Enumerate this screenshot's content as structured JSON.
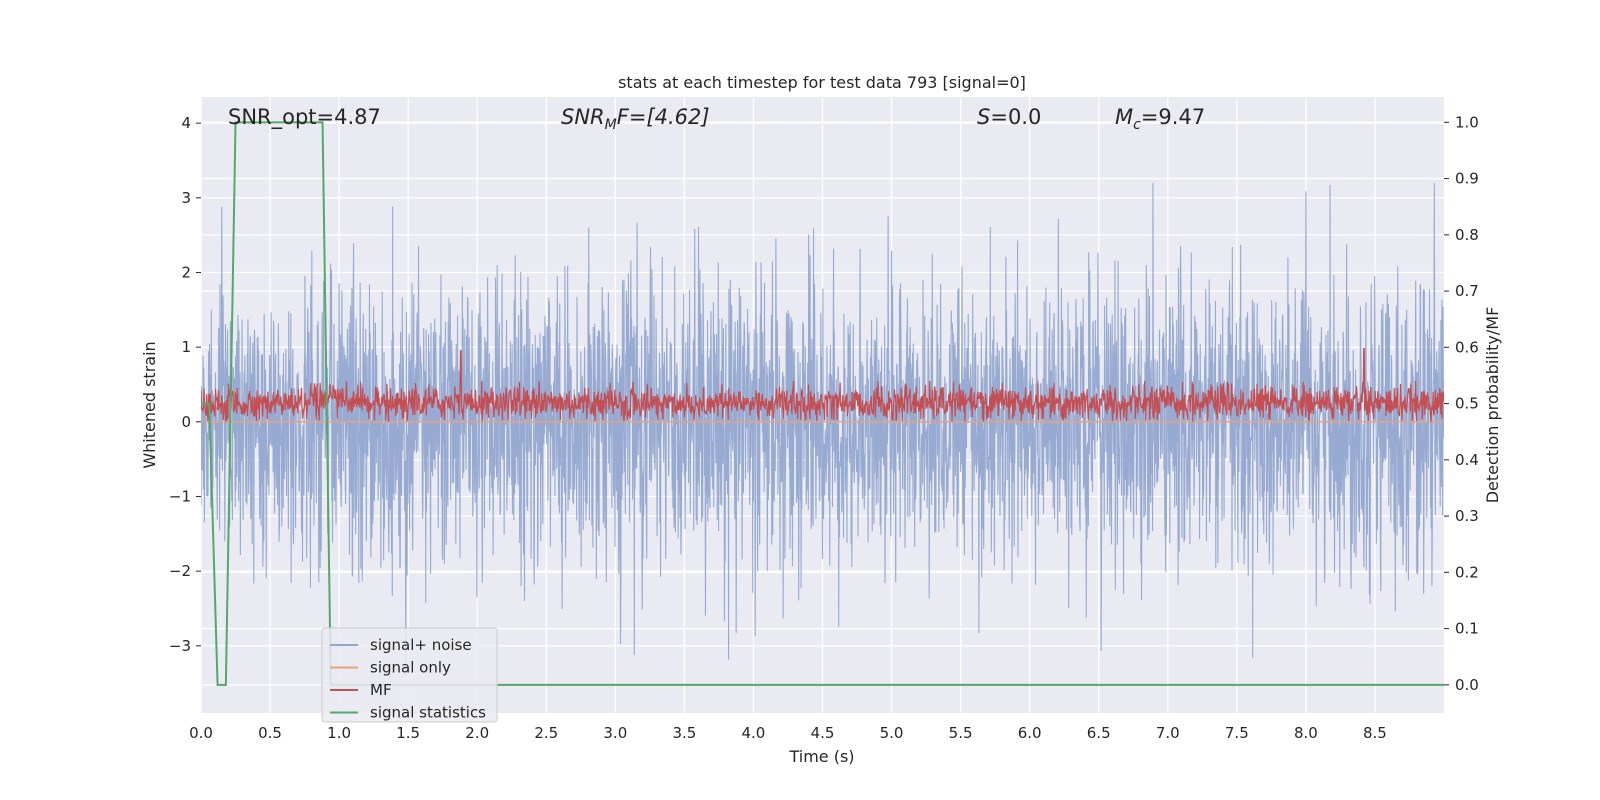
{
  "chart_data": {
    "type": "line",
    "title": "stats at each timestep for test data 793 [signal=0]",
    "xlabel": "Time (s)",
    "ylabel_left": "Whitened strain",
    "ylabel_right": "Detection probability/MF",
    "xlim": [
      0.0,
      9.0
    ],
    "ylim_left": [
      -3.9,
      4.35
    ],
    "ylim_right": [
      -0.05,
      1.045
    ],
    "x_ticks": [
      "0.0",
      "0.5",
      "1.0",
      "1.5",
      "2.0",
      "2.5",
      "3.0",
      "3.5",
      "4.0",
      "4.5",
      "5.0",
      "5.5",
      "6.0",
      "6.5",
      "7.0",
      "7.5",
      "8.0",
      "8.5"
    ],
    "y_left_ticks": [
      "4",
      "3",
      "2",
      "1",
      "0",
      "−1",
      "−2",
      "−3"
    ],
    "y_right_ticks": [
      "1.0",
      "0.9",
      "0.8",
      "0.7",
      "0.6",
      "0.5",
      "0.4",
      "0.3",
      "0.2",
      "0.1",
      "0.0"
    ],
    "grid": true,
    "legend_position": "lower-left",
    "annotations": {
      "snr_opt": "SNR_opt=4.87",
      "snr_mf_main": "SNR",
      "snr_mf_sub": "M",
      "snr_mf_rest": "F=[4.62]",
      "s_main": "S",
      "s_rest": "=0.0",
      "mc_main": "M",
      "mc_sub": "c",
      "mc_rest": "=9.47"
    },
    "series": [
      {
        "name": "signal+ noise",
        "axis": "left",
        "color": "#92a6cf",
        "description_values": {
          "envelope_max": 3.2,
          "envelope_min": -3.55,
          "typical_band": [
            -1.5,
            1.5
          ]
        }
      },
      {
        "name": "signal only",
        "axis": "left",
        "color": "#e8a27f",
        "x": [
          0.0,
          9.0
        ],
        "y": [
          0.0,
          0.0
        ]
      },
      {
        "name": "MF",
        "axis": "left",
        "color": "#c44e52",
        "description_values": {
          "typical_band": [
            0.0,
            0.55
          ],
          "peaks": [
            [
              1.88,
              0.95
            ],
            [
              8.42,
              0.98
            ]
          ]
        }
      },
      {
        "name": "signal statistics",
        "axis": "right",
        "color": "#55a868",
        "x": [
          0.0,
          0.06,
          0.12,
          0.18,
          0.25,
          0.88,
          0.94,
          9.0
        ],
        "y": [
          0.5,
          0.5,
          0.0,
          0.0,
          1.0,
          1.0,
          0.0,
          0.0
        ]
      }
    ]
  }
}
